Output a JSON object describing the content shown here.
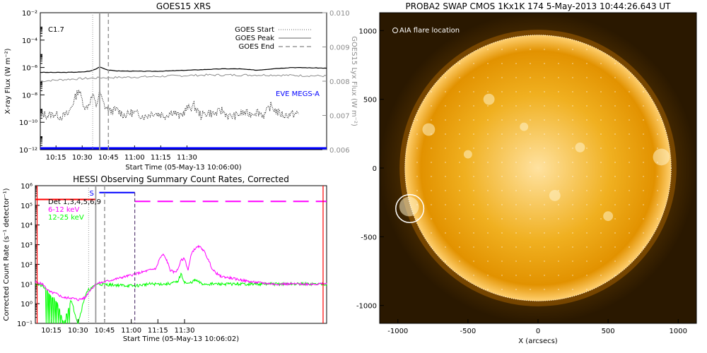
{
  "colors": {
    "goes_xray": "#000000",
    "goes_lya": "#8c8c8c",
    "eve": "#0000ff",
    "hessi_det": "#ff0000",
    "hessi_6_12": "#ff00ff",
    "hessi_12_25": "#00ff00",
    "hessi_s": "#0000ff",
    "sun_core": "#ffe2a0",
    "sun_mid": "#e8a300",
    "sun_edge": "#b36b00"
  },
  "chart_data": [
    {
      "id": "goes",
      "type": "line",
      "title": "GOES15 XRS",
      "xlabel": "Start Time (05-May-13 10:06:00)",
      "ylabel_left": "X-ray Flux (W m⁻²)",
      "ylabel_right": "GOES15 Lyx Flux (W m⁻²)",
      "xlim_min": [
        6,
        170
      ],
      "x_ticks_min": [
        9,
        24,
        39,
        54,
        69,
        84
      ],
      "x_tick_labels": [
        "10:15",
        "10:30",
        "10:45",
        "11:00",
        "11:15",
        "11:30"
      ],
      "ylim_log": [
        -12,
        -2
      ],
      "y_ticks_log": [
        -12,
        -10,
        -8,
        -6,
        -4,
        -2
      ],
      "y_tick_labels": [
        "10⁻¹²",
        "10⁻¹⁰",
        "10⁻⁸",
        "10⁻⁶",
        "10⁻⁴",
        "10⁻²"
      ],
      "ylim_right": [
        0.006,
        0.01
      ],
      "y_ticks_right": [
        0.006,
        0.007,
        0.008,
        0.009,
        0.01
      ],
      "y_tick_labels_right": [
        "0.006",
        "0.007",
        "0.008",
        "0.009",
        "0.010"
      ],
      "class_label": "C1.7",
      "legend": [
        "GOES Start",
        "GOES Peak",
        "GOES End"
      ],
      "legend_position": "top-right",
      "goes_start_min": 36,
      "goes_peak_min": 40,
      "goes_end_min": 45,
      "eve_label": "EVE MEGS-A",
      "eve_level_log": -11.9,
      "xray_long": {
        "x": [
          6,
          10,
          20,
          30,
          35,
          38,
          40,
          42,
          45,
          50,
          60,
          70,
          80,
          90,
          100,
          110,
          120,
          130,
          140,
          150,
          160,
          170
        ],
        "y": [
          -6.35,
          -6.36,
          -6.36,
          -6.33,
          -6.25,
          -6.1,
          -5.95,
          -6.05,
          -6.2,
          -6.25,
          -6.27,
          -6.28,
          -6.25,
          -6.2,
          -6.15,
          -6.1,
          -6.1,
          -6.2,
          -6.08,
          -6.0,
          -6.02,
          -6.05
        ]
      },
      "lya": {
        "x": [
          6,
          20,
          40,
          60,
          80,
          100,
          120,
          140,
          170
        ],
        "y": [
          0.008,
          0.00805,
          0.0081,
          0.00812,
          0.00815,
          0.00818,
          0.00818,
          0.00818,
          0.00815
        ]
      },
      "xray_short": {
        "x": [
          6,
          10,
          14,
          18,
          22,
          26,
          28,
          30,
          32,
          34,
          36,
          38,
          40,
          42,
          44,
          46,
          50,
          54,
          58,
          62,
          66,
          70,
          74,
          78,
          82,
          86,
          90,
          94,
          98,
          102,
          106,
          110,
          114,
          118,
          122,
          126,
          130,
          134,
          138,
          142,
          146,
          150,
          154
        ],
        "y": [
          -9.3,
          -9.5,
          -9.4,
          -9.6,
          -9.4,
          -8.2,
          -7.6,
          -8.4,
          -9.0,
          -8.6,
          -8.0,
          -8.8,
          -7.8,
          -8.6,
          -9.0,
          -9.2,
          -9.1,
          -9.5,
          -9.3,
          -9.4,
          -9.6,
          -9.3,
          -9.4,
          -9.5,
          -9.2,
          -9.6,
          -9.0,
          -8.8,
          -9.5,
          -9.3,
          -9.4,
          -9.1,
          -9.6,
          -9.5,
          -9.3,
          -9.4,
          -9.2,
          -9.5,
          -8.8,
          -9.3,
          -9.5,
          -9.4,
          -9.4
        ]
      }
    },
    {
      "id": "hessi",
      "type": "line",
      "title": "HESSI Observing Summary Count Rates, Corrected",
      "xlabel": "Start Time (05-May-13 10:06:02)",
      "ylabel": "Corrected Count Rate (s⁻¹ detector⁻¹)",
      "xlim_min": [
        6,
        170
      ],
      "x_ticks_min": [
        9,
        24,
        39,
        54,
        69,
        84
      ],
      "x_tick_labels": [
        "10:15",
        "10:30",
        "10:45",
        "11:00",
        "11:15",
        "11:30"
      ],
      "ylim_log": [
        -1,
        6
      ],
      "y_ticks_log": [
        -1,
        0,
        1,
        2,
        3,
        4,
        5,
        6
      ],
      "y_tick_labels": [
        "10⁻¹",
        "10⁰",
        "10¹",
        "10²",
        "10³",
        "10⁴",
        "10⁵",
        "10⁶"
      ],
      "legend": [
        "Det 1,3,4,5,6,9",
        "6-12 keV",
        "12-25 keV"
      ],
      "legend_position": "top-left",
      "s_label": "S",
      "goes_start_min": 36,
      "goes_peak_min": 40,
      "goes_end_min": 45,
      "s_bar": [
        42,
        62
      ],
      "gap": [
        40,
        62
      ],
      "red_verticals": [
        7,
        168
      ],
      "det_bar": [
        6,
        40
      ],
      "mag_dashed_level": 5.2,
      "mag_dashed_start": 62,
      "m6_12": {
        "x": [
          6,
          10,
          14,
          18,
          22,
          26,
          30,
          34,
          36,
          38,
          40,
          62,
          66,
          70,
          74,
          76,
          78,
          80,
          82,
          84,
          86,
          88,
          90,
          92,
          94,
          96,
          98,
          100,
          102,
          104,
          106,
          110,
          116,
          122,
          128,
          134,
          140,
          146,
          152,
          158,
          164,
          170
        ],
        "y": [
          1.1,
          1.0,
          0.6,
          0.5,
          0.3,
          0.3,
          0.2,
          0.3,
          0.6,
          0.8,
          1.0,
          1.5,
          1.6,
          1.7,
          1.8,
          2.3,
          2.5,
          2.2,
          1.7,
          1.6,
          1.7,
          2.2,
          2.3,
          1.7,
          2.6,
          2.8,
          2.9,
          2.8,
          2.5,
          2.1,
          1.7,
          1.4,
          1.3,
          1.2,
          1.1,
          1.05,
          1.0,
          1.0,
          1.0,
          1.0,
          1.0,
          1.0
        ]
      },
      "m12_25": {
        "x": [
          6,
          10,
          14,
          18,
          22,
          26,
          30,
          34,
          36,
          38,
          40,
          62,
          70,
          80,
          86,
          88,
          90,
          92,
          96,
          100,
          110,
          120,
          130,
          140,
          150,
          160,
          170
        ],
        "y": [
          1.0,
          0.9,
          0.5,
          0.1,
          -1.0,
          0.2,
          -1.0,
          0.4,
          0.7,
          0.8,
          1.0,
          0.9,
          1.0,
          1.0,
          1.1,
          1.5,
          1.1,
          1.0,
          1.2,
          1.0,
          1.0,
          1.0,
          1.0,
          1.0,
          1.0,
          1.0,
          1.0
        ]
      }
    },
    {
      "id": "swap",
      "type": "heatmap",
      "title": "PROBA2 SWAP CMOS 1Kx1K 174   5-May-2013 10:44:26.643 UT",
      "xlabel": "X (arcsecs)",
      "ylabel": "",
      "xlim": [
        -1130,
        1130
      ],
      "ylim": [
        -1130,
        1130
      ],
      "x_ticks": [
        -1000,
        -500,
        0,
        500,
        1000
      ],
      "x_tick_labels": [
        "-1000",
        "-500",
        "0",
        "500",
        "1000"
      ],
      "y_ticks": [
        -1000,
        -500,
        0,
        500,
        1000
      ],
      "y_tick_labels": [
        "-1000",
        "-500",
        "0",
        "500",
        "1000"
      ],
      "sun_radius_arcsec": 950,
      "flare_x": -915,
      "flare_y": -295,
      "flare_radius": 100,
      "flare_label": "AIA flare location"
    }
  ]
}
